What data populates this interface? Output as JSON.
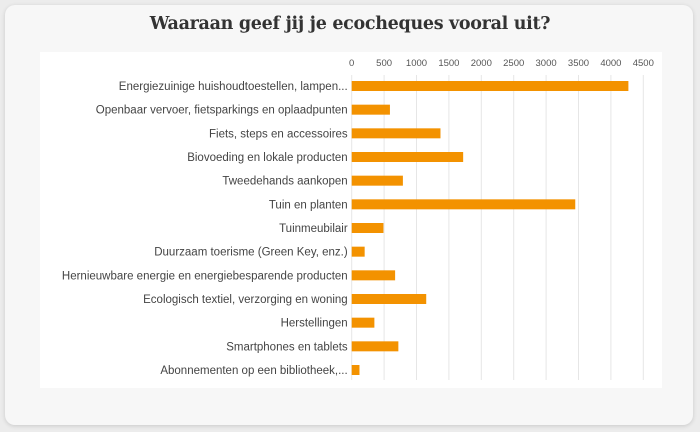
{
  "chart_data": {
    "type": "bar",
    "orientation": "horizontal",
    "title": "Waaraan geef jij je ecocheques vooral uit?",
    "xlabel": "",
    "ylabel": "",
    "xlim": [
      0,
      4500
    ],
    "xticks": [
      0,
      500,
      1000,
      1500,
      2000,
      2500,
      3000,
      3500,
      4000,
      4500
    ],
    "tick_position": "top",
    "grid": true,
    "legend": "none",
    "bar_color": "#f39200",
    "categories": [
      "Energiezuinige huishoudtoestellen, lampen...",
      "Openbaar vervoer, fietsparkings en oplaadpunten",
      "Fiets, steps en accessoires",
      "Biovoeding en lokale producten",
      "Tweedehands aankopen",
      "Tuin en planten",
      "Tuinmeubilair",
      "Duurzaam toerisme (Green Key, enz.)",
      "Hernieuwbare energie en energiebesparende producten",
      "Ecologisch textiel, verzorging en woning",
      "Herstellingen",
      "Smartphones en tablets",
      "Abonnementen op een bibliotheek,..."
    ],
    "values": [
      4270,
      590,
      1370,
      1720,
      790,
      3450,
      490,
      200,
      670,
      1150,
      350,
      720,
      120
    ]
  }
}
